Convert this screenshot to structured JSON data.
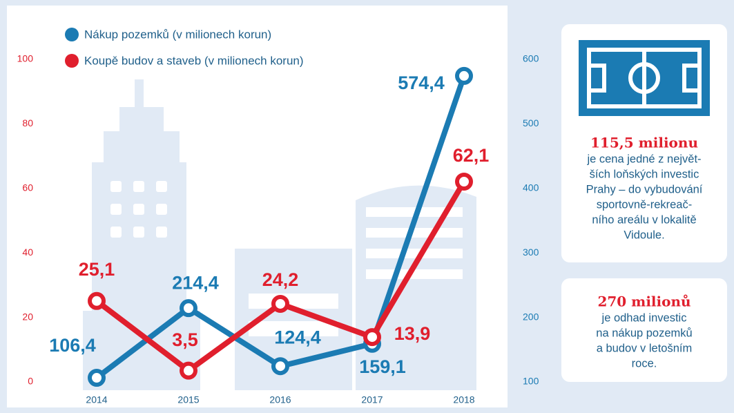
{
  "chart_data": {
    "type": "line",
    "categories": [
      "2014",
      "2015",
      "2016",
      "2017",
      "2018"
    ],
    "series": [
      {
        "name": "Nákup pozemků (v milionech korun)",
        "color": "#1b7bb3",
        "axis": "y2",
        "values": [
          106.4,
          214.4,
          124.4,
          159.1,
          574.4
        ],
        "value_labels": [
          "106,4",
          "214,4",
          "124,4",
          "159,1",
          "574,4"
        ]
      },
      {
        "name": "Koupě budov a staveb (v milionech korun)",
        "color": "#e01f2d",
        "values": [
          25.1,
          3.5,
          24.2,
          13.9,
          62.1
        ],
        "value_labels": [
          "25,1",
          "3,5",
          "24,2",
          "13,9",
          "62,1"
        ]
      }
    ],
    "ylim": [
      0,
      100
    ],
    "yticks": [
      0,
      20,
      40,
      60,
      80,
      100
    ],
    "y2lim": [
      100,
      600
    ],
    "y2ticks": [
      100,
      200,
      300,
      400,
      500,
      600
    ],
    "legend": "top-left"
  },
  "sidebar": [
    {
      "headline": "115,5 milionu",
      "lines": [
        "je cena jedné z největ-",
        "ších loňských investic",
        "Prahy – do vybudování",
        "sportovně-rekreač-",
        "ního areálu v lokalitě",
        "Vidoule."
      ]
    },
    {
      "headline": "270 milionů",
      "lines": [
        "je odhad investic",
        "na nákup pozemků",
        "a budov v letošním",
        "roce."
      ]
    }
  ]
}
